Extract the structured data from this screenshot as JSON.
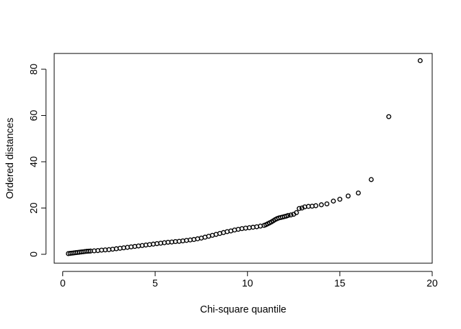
{
  "chart_data": {
    "type": "scatter",
    "title": "",
    "xlabel": "Chi-square quantile",
    "ylabel": "Ordered distances",
    "xlim": [
      0,
      20
    ],
    "ylim": [
      0,
      84
    ],
    "xticks": [
      "0",
      "5",
      "10",
      "15",
      "20"
    ],
    "yticks": [
      "0",
      "20",
      "40",
      "60",
      "80"
    ],
    "grid": false,
    "legend": "none",
    "marker": "open-circle",
    "colors": {
      "marker": "#000000",
      "axis": "#000000",
      "background": "#ffffff"
    },
    "series": [
      {
        "x": [
          0.3,
          0.4,
          0.5,
          0.6,
          0.7,
          0.8,
          0.9,
          1.0,
          1.1,
          1.2,
          1.3,
          1.4,
          1.5,
          1.7,
          1.9,
          2.1,
          2.3,
          2.5,
          2.7,
          2.9,
          3.1,
          3.3,
          3.5,
          3.7,
          3.9,
          4.1,
          4.3,
          4.5,
          4.7,
          4.9,
          5.1,
          5.3,
          5.5,
          5.7,
          5.9,
          6.1,
          6.3,
          6.5,
          6.7,
          6.9,
          7.1,
          7.3,
          7.5,
          7.7,
          7.9,
          8.1,
          8.3,
          8.5,
          8.7,
          8.9,
          9.1,
          9.3,
          9.5,
          9.7,
          9.9,
          10.1,
          10.3,
          10.5,
          10.7,
          10.9,
          11.0,
          11.1,
          11.2,
          11.3,
          11.4,
          11.5,
          11.6,
          11.7,
          11.8,
          11.9,
          12.0,
          12.1,
          12.2,
          12.35,
          12.5,
          12.65,
          12.8,
          12.95,
          13.1,
          13.3,
          13.5,
          13.7,
          14.0,
          14.3,
          14.65,
          15.0,
          15.45,
          16.0,
          16.7,
          17.65,
          19.35
        ],
        "y": [
          0.3,
          0.4,
          0.5,
          0.6,
          0.7,
          0.8,
          0.9,
          1.0,
          1.1,
          1.2,
          1.3,
          1.35,
          1.4,
          1.5,
          1.6,
          1.8,
          1.9,
          2.0,
          2.2,
          2.4,
          2.6,
          2.8,
          3.0,
          3.2,
          3.4,
          3.6,
          3.8,
          4.0,
          4.2,
          4.4,
          4.6,
          4.8,
          5.0,
          5.2,
          5.3,
          5.5,
          5.6,
          5.8,
          6.0,
          6.2,
          6.4,
          6.7,
          7.0,
          7.4,
          7.8,
          8.2,
          8.6,
          9.0,
          9.4,
          9.8,
          10.1,
          10.5,
          10.8,
          11.1,
          11.3,
          11.5,
          11.7,
          11.9,
          12.2,
          12.5,
          12.8,
          13.2,
          13.6,
          14.0,
          14.5,
          15.0,
          15.4,
          15.7,
          15.9,
          16.1,
          16.3,
          16.5,
          16.8,
          17.0,
          17.3,
          18.0,
          19.8,
          20.0,
          20.5,
          20.7,
          20.8,
          21.0,
          21.4,
          21.8,
          23.0,
          23.8,
          25.2,
          26.5,
          32.3,
          59.5,
          83.7
        ]
      }
    ]
  }
}
